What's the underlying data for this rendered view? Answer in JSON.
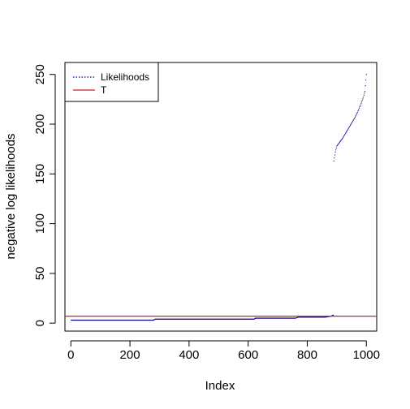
{
  "chart_data": {
    "type": "scatter",
    "title": "",
    "xlabel": "Index",
    "ylabel": "negative log likelihoods",
    "xlim": [
      -20,
      1035
    ],
    "ylim": [
      -8,
      262
    ],
    "x_ticks": [
      0,
      200,
      400,
      600,
      800,
      1000
    ],
    "y_ticks": [
      0,
      50,
      100,
      150,
      200,
      250
    ],
    "grid": false,
    "legend": {
      "placement": "top-left",
      "entries": [
        {
          "label": "Likelihoods",
          "style": "dotted",
          "color": "#00008b"
        },
        {
          "label": "T",
          "style": "solid",
          "color": "#cc2222"
        }
      ]
    },
    "series": [
      {
        "name": "Likelihoods",
        "color": "#00008b",
        "segments": [
          {
            "x": [
              1,
              280,
              285,
              620,
              625,
              760,
              770,
              860,
              880,
              888
            ],
            "y": [
              3,
              3,
              4,
              4,
              5,
              5,
              6,
              6,
              7,
              8
            ]
          },
          {
            "x": [
              890,
              895,
              900,
              910,
              920,
              930,
              940,
              950,
              960,
              970,
              980,
              990,
              995,
              1000
            ],
            "y": [
              163,
              172,
              178,
              182,
              186,
              191,
              196,
              201,
              206,
              212,
              219,
              227,
              233,
              250
            ]
          }
        ]
      }
    ],
    "threshold": {
      "name": "T",
      "y": 7,
      "color": "#cc2222"
    }
  }
}
